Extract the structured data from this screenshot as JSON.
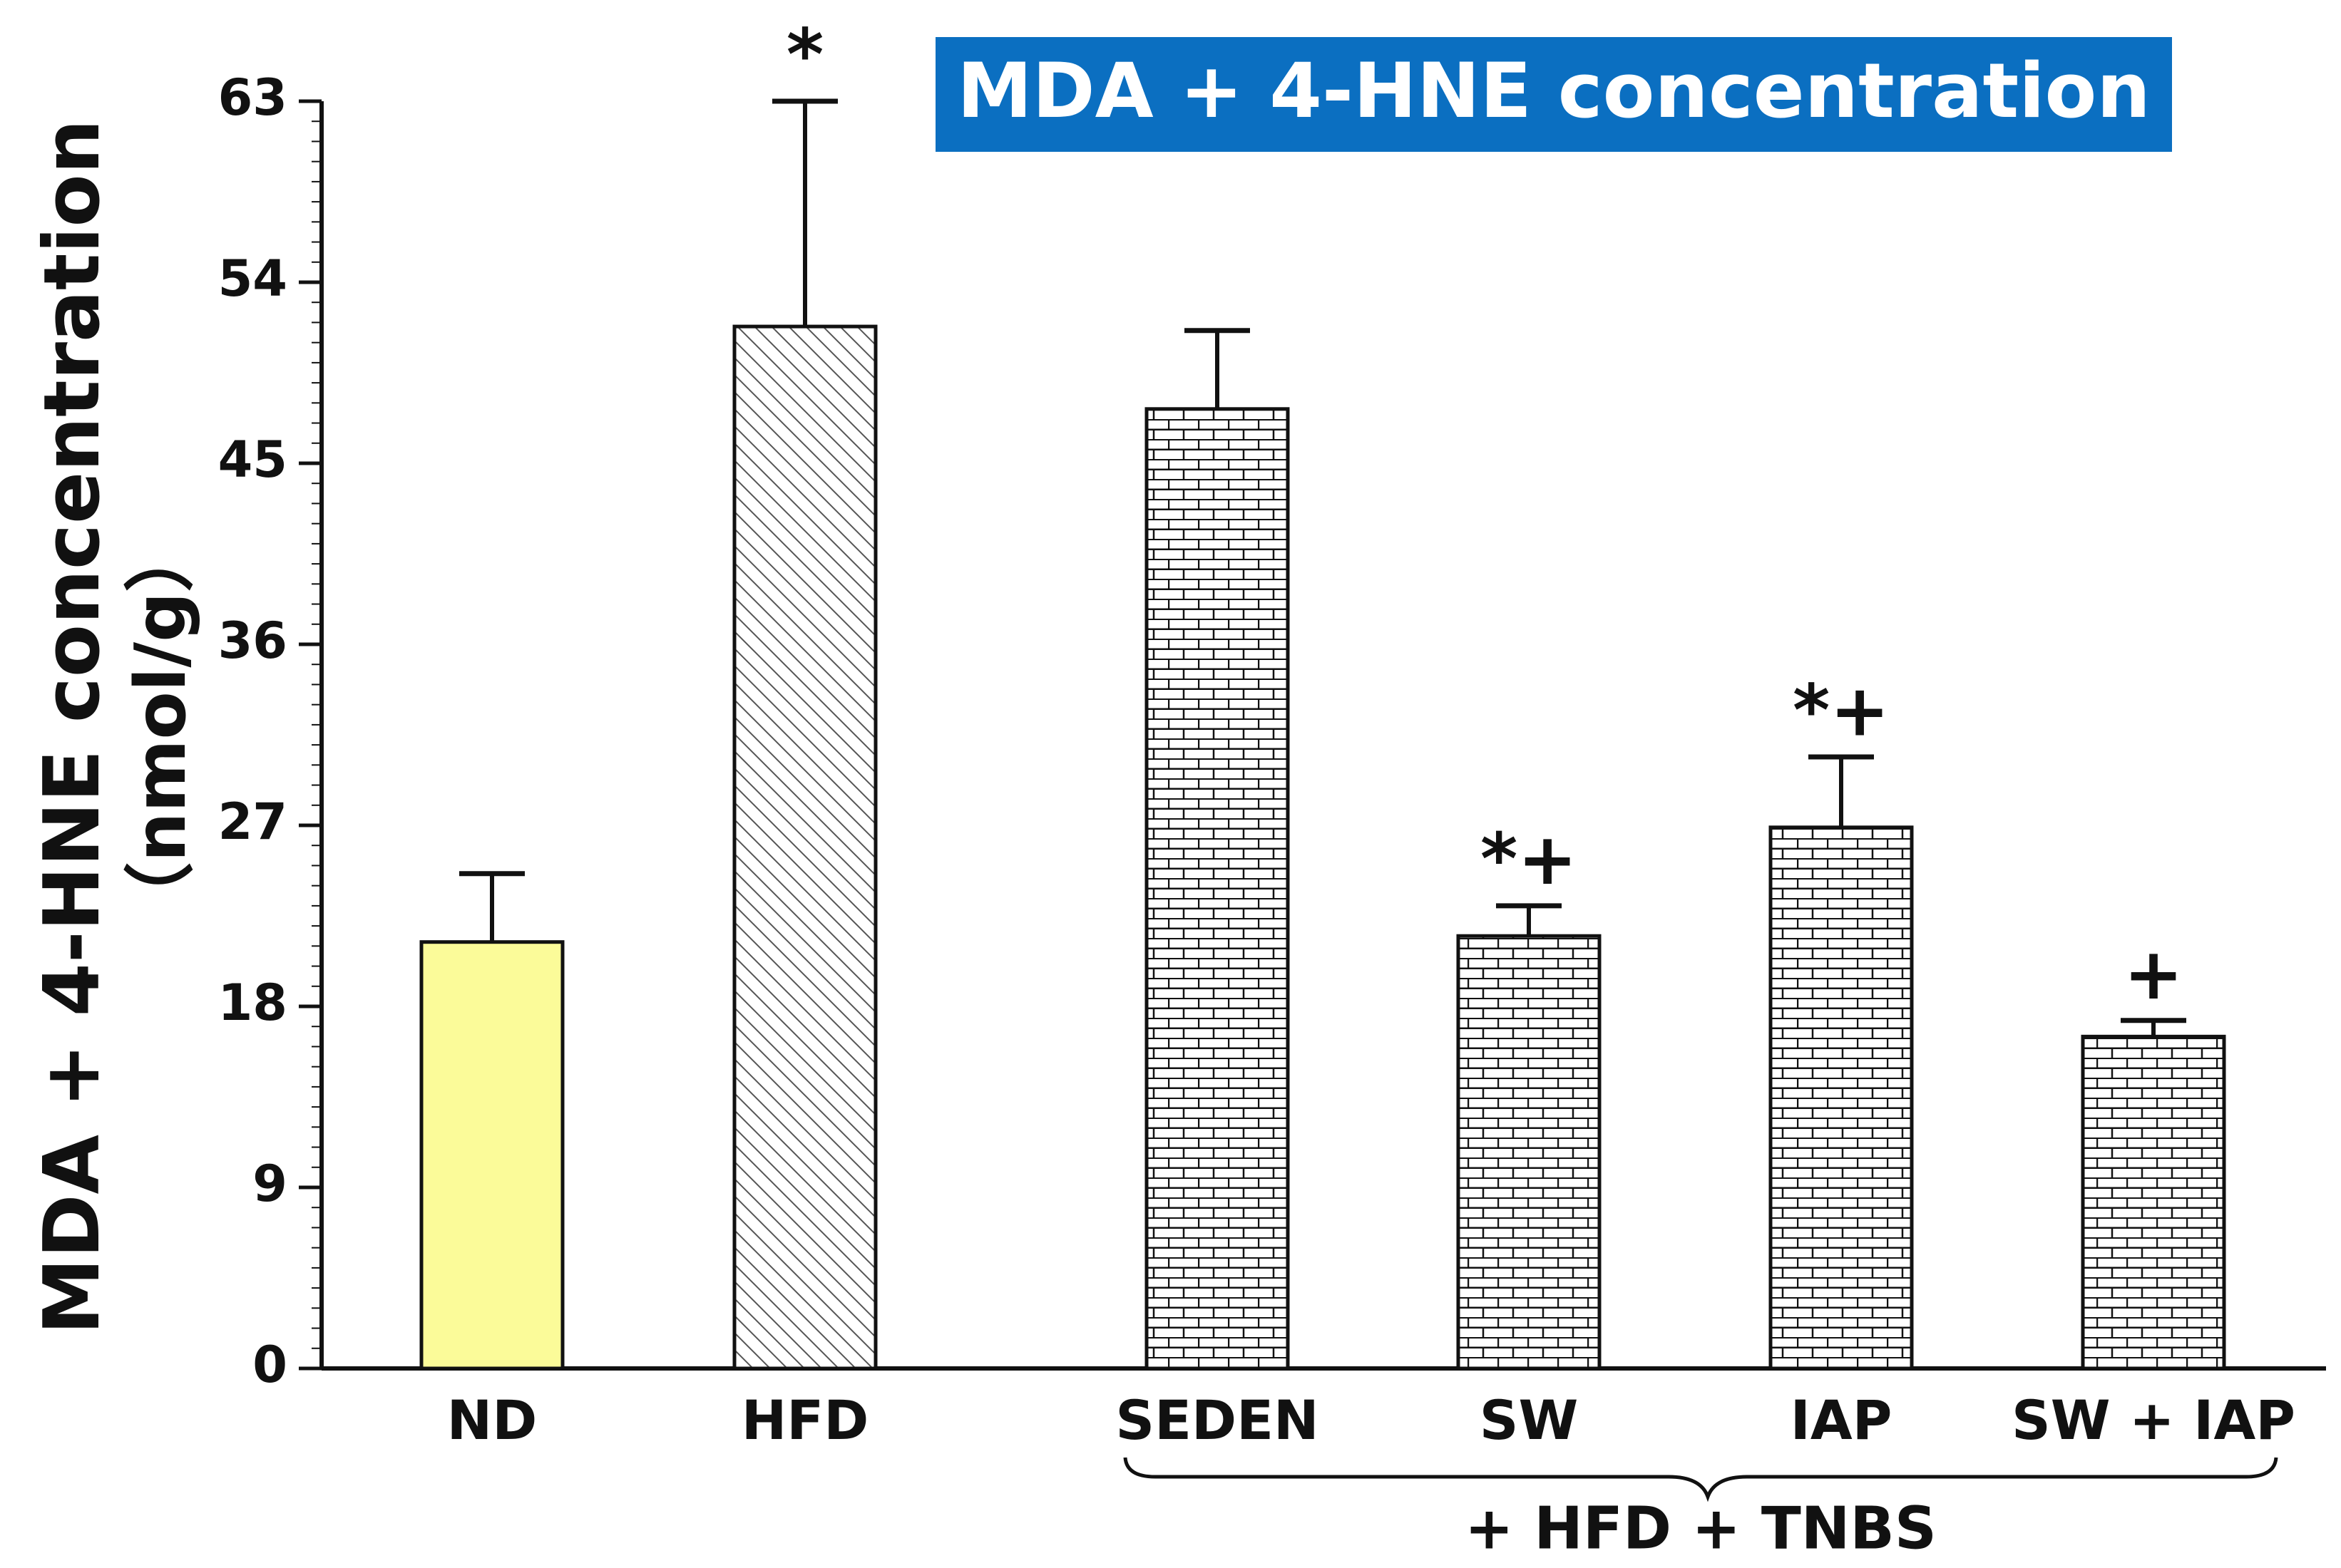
{
  "chart_data": {
    "type": "bar",
    "title": "MDA + 4-HNE concentration",
    "ylabel": "MDA + 4-HNE concentration",
    "ylabel_unit": "（nmol/g）",
    "xlabel": "",
    "ylim": [
      0,
      63
    ],
    "yticks": [
      "0",
      "9",
      "18",
      "27",
      "36",
      "45",
      "54",
      "63"
    ],
    "ytick_values": [
      0,
      9,
      18,
      27,
      36,
      45,
      54,
      63
    ],
    "categories": [
      "ND",
      "HFD",
      "SEDEN",
      "SW",
      "IAP",
      "SW +  IAP"
    ],
    "values": [
      21.2,
      51.8,
      47.7,
      21.5,
      26.9,
      16.5
    ],
    "errors": [
      3.4,
      11.2,
      3.9,
      1.5,
      3.5,
      0.8
    ],
    "significance": [
      "",
      "*",
      "",
      "*+",
      "*+",
      "+"
    ],
    "fills": [
      "solid-yellow",
      "diagonal-hatch",
      "brick",
      "brick",
      "brick",
      "brick"
    ],
    "bar_color": "#fbfb99",
    "group_label": "+ HFD + TNBS",
    "legend": "none",
    "grid": false
  },
  "colors": {
    "title_background": "#0b6fc1",
    "title_text": "#ffffff",
    "axis": "#111111",
    "solid_bar": "#fbfb99"
  }
}
